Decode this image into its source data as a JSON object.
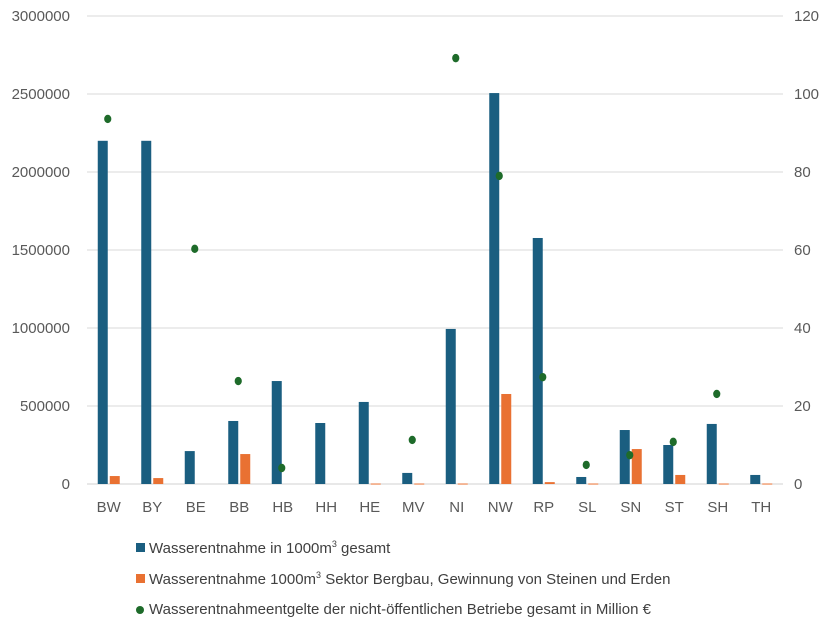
{
  "chart_data": {
    "type": "bar",
    "title": "",
    "categories": [
      "BW",
      "BY",
      "BE",
      "BB",
      "HB",
      "HH",
      "HE",
      "MV",
      "NI",
      "NW",
      "RP",
      "SL",
      "SN",
      "ST",
      "SH",
      "TH"
    ],
    "y_left": {
      "range": [
        0,
        3000000
      ],
      "ticks": [
        "0",
        "500000",
        "1000000",
        "1500000",
        "2000000",
        "2500000",
        "3000000"
      ]
    },
    "y_right": {
      "range": [
        0,
        120
      ],
      "ticks": [
        "0",
        "20",
        "40",
        "60",
        "80",
        "100",
        "120"
      ]
    },
    "grid": true,
    "legend_position": "bottom",
    "series": [
      {
        "name": "Wasserentnahme in 1000m³ gesamt",
        "label_main": "Wasserentnahme in 1000m",
        "label_sup": "3",
        "label_rest": " gesamt",
        "type": "bar",
        "axis": "left",
        "color": "#1a5e80",
        "values": [
          2200000,
          2200000,
          211000,
          404000,
          660000,
          391000,
          526000,
          71000,
          994000,
          2506000,
          1577000,
          45000,
          346000,
          250000,
          385000,
          58000
        ]
      },
      {
        "name": "Wasserentnahme 1000m³ Sektor Bergbau, Gewinnung von Steinen und Erden",
        "label_main": "Wasserentnahme 1000m",
        "label_sup": "3",
        "label_rest": " Sektor Bergbau, Gewinnung von Steinen und Erden",
        "type": "bar",
        "axis": "left",
        "color": "#e97132",
        "values": [
          51000,
          38000,
          0,
          192000,
          0,
          0,
          3000,
          3000,
          3000,
          577000,
          12000,
          3000,
          224000,
          58000,
          3000,
          3000
        ]
      },
      {
        "name": "Wasserentnahmeentgelte der nicht-öffentlichen Betriebe gesamt in Million €",
        "label_main": "Wasserentnahmeentgelte der nicht-öffentlichen Betriebe gesamt in Million €",
        "type": "scatter",
        "axis": "right",
        "color": "#1e6b2a",
        "values": [
          93.6,
          null,
          60.3,
          26.4,
          4.1,
          null,
          null,
          11.3,
          109.2,
          79.0,
          27.4,
          4.9,
          7.4,
          10.8,
          23.1,
          null
        ]
      }
    ]
  }
}
